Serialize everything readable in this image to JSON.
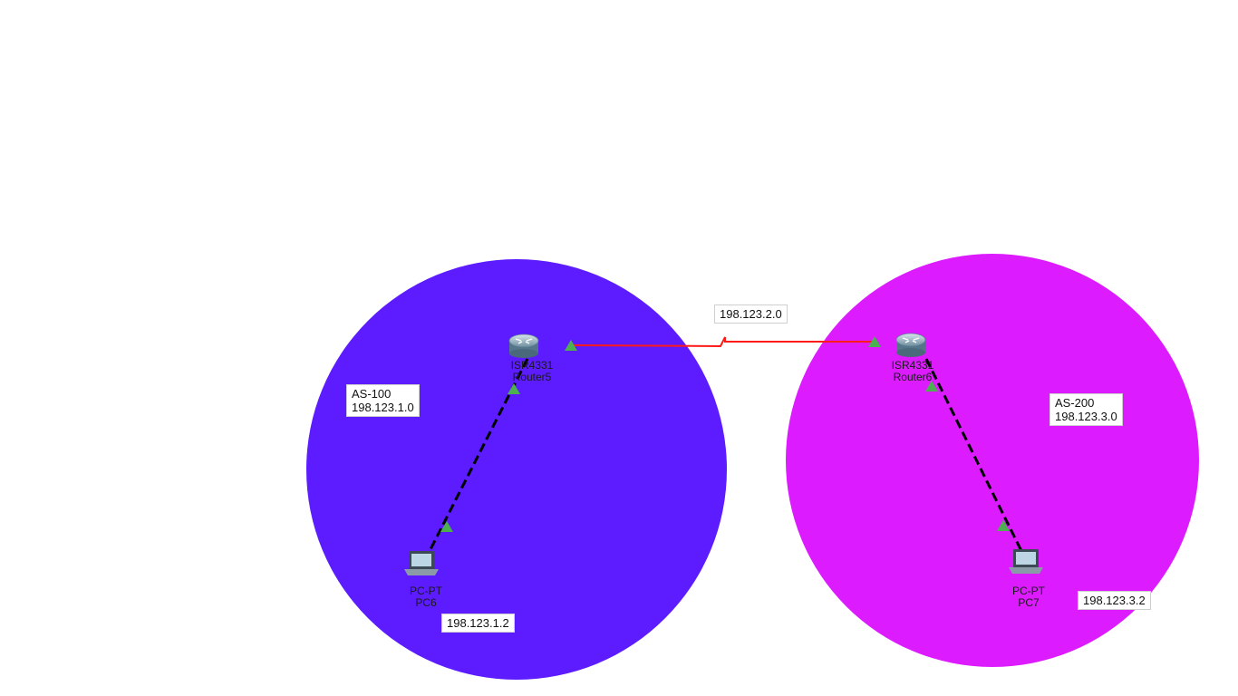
{
  "areas": {
    "as100": {
      "name": "AS-100",
      "network": "198.123.1.0",
      "color": "#5c1cff"
    },
    "as200": {
      "name": "AS-200",
      "network": "198.123.3.0",
      "color": "#dc1cff"
    }
  },
  "wan_link": {
    "network": "198.123.2.0",
    "color": "#ff1a1a"
  },
  "devices": {
    "router5": {
      "model": "ISR4331",
      "name": "Router5",
      "icon": "router-icon"
    },
    "router6": {
      "model": "ISR4331",
      "name": "Router6",
      "icon": "router-icon"
    },
    "pc6": {
      "model": "PC-PT",
      "name": "PC6",
      "ip": "198.123.1.2",
      "icon": "laptop-icon"
    },
    "pc7": {
      "model": "PC-PT",
      "name": "PC7",
      "ip": "198.123.3.2",
      "icon": "laptop-icon"
    }
  },
  "link_status_color": "#4caf50"
}
